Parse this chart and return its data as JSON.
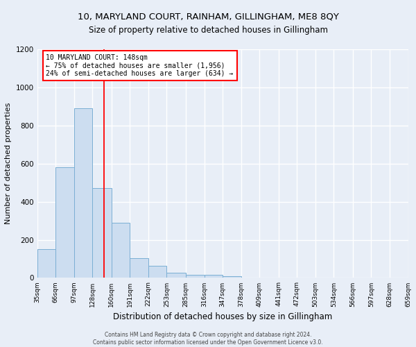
{
  "title1": "10, MARYLAND COURT, RAINHAM, GILLINGHAM, ME8 8QY",
  "title2": "Size of property relative to detached houses in Gillingham",
  "xlabel": "Distribution of detached houses by size in Gillingham",
  "ylabel": "Number of detached properties",
  "footnote1": "Contains HM Land Registry data © Crown copyright and database right 2024.",
  "footnote2": "Contains public sector information licensed under the Open Government Licence v3.0.",
  "bin_edges": [
    35,
    66,
    97,
    128,
    160,
    191,
    222,
    253,
    285,
    316,
    347,
    378,
    409,
    441,
    472,
    503,
    534,
    566,
    597,
    628,
    659
  ],
  "bar_values": [
    150,
    580,
    890,
    470,
    290,
    105,
    65,
    28,
    18,
    15,
    8,
    0,
    0,
    0,
    0,
    0,
    0,
    0,
    0,
    0
  ],
  "bar_color": "#ccddf0",
  "bar_edge_color": "#7bafd4",
  "red_line_x": 148,
  "annotation_text": "10 MARYLAND COURT: 148sqm\n← 75% of detached houses are smaller (1,956)\n24% of semi-detached houses are larger (634) →",
  "annotation_box_color": "white",
  "annotation_box_edge_color": "red",
  "ylim": [
    0,
    1200
  ],
  "yticks": [
    0,
    200,
    400,
    600,
    800,
    1000,
    1200
  ],
  "background_color": "#e8eef7",
  "grid_color": "white",
  "title1_fontsize": 9.5,
  "title2_fontsize": 8.5,
  "ylabel_fontsize": 8,
  "xlabel_fontsize": 8.5,
  "tick_fontsize": 6.5,
  "annotation_fontsize": 7,
  "footnote_fontsize": 5.5
}
